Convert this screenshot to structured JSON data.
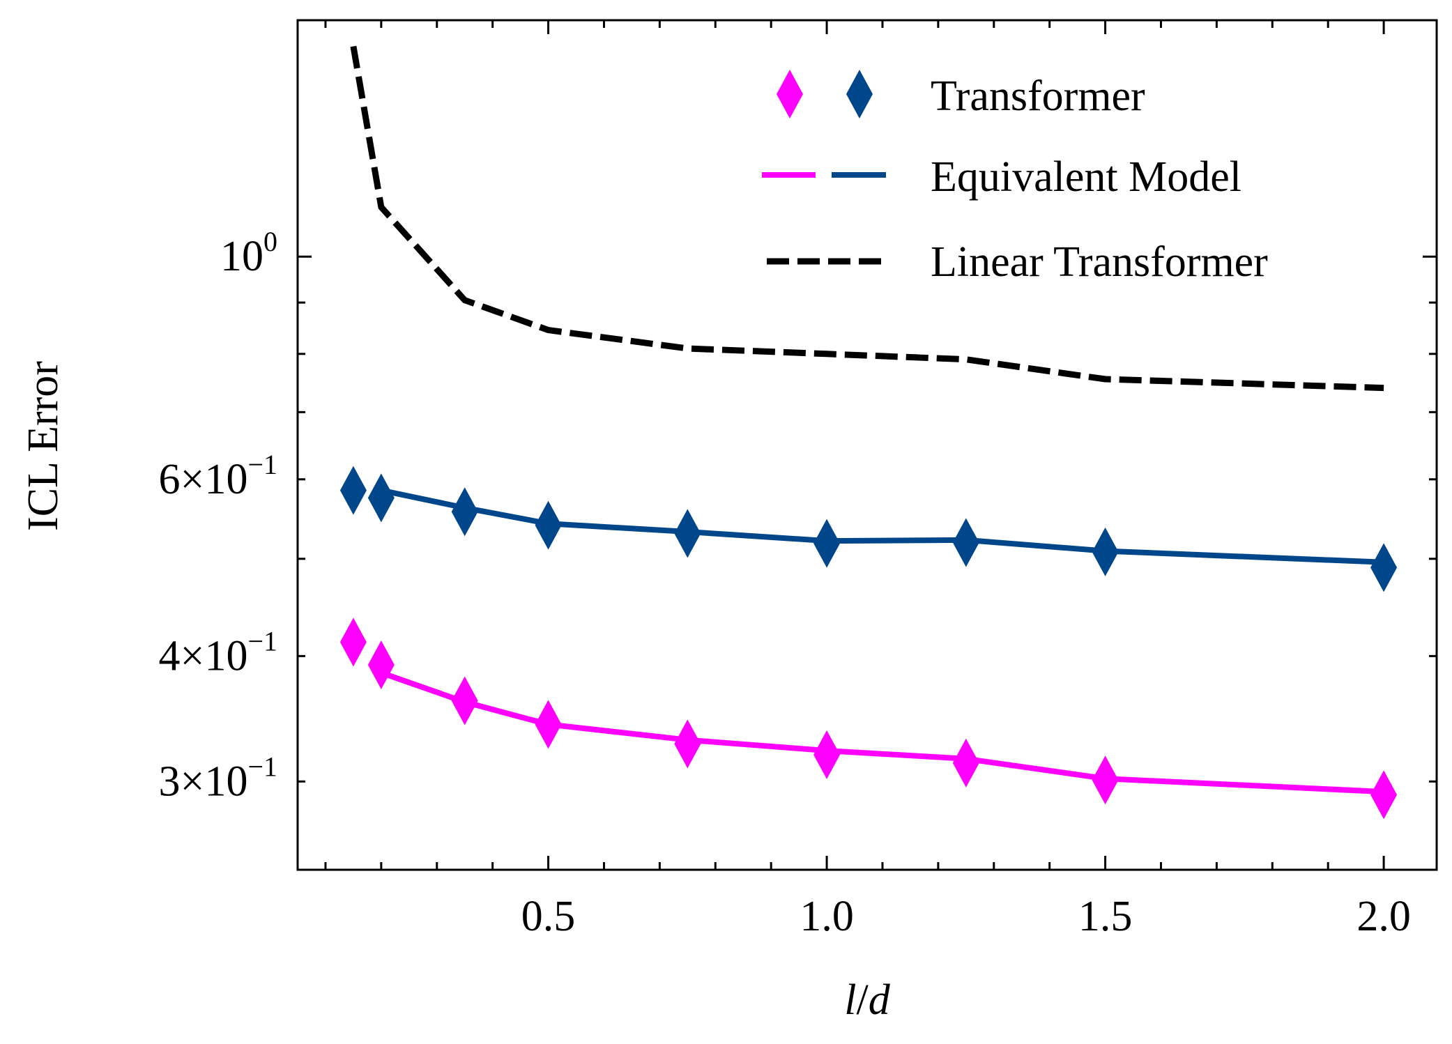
{
  "chart_data": {
    "type": "line",
    "xlabel_var1": "l",
    "xlabel_sep": "/",
    "xlabel_var2": "d",
    "ylabel": "ICL Error",
    "xscale": "linear",
    "yscale": "log",
    "xlim": [
      0.05,
      2.095
    ],
    "ylim": [
      0.245,
      1.72
    ],
    "x_ticks": [
      {
        "value": 0.5,
        "label": "0.5"
      },
      {
        "value": 1.0,
        "label": "1.0"
      },
      {
        "value": 1.5,
        "label": "1.5"
      },
      {
        "value": 2.0,
        "label": "2.0"
      }
    ],
    "y_ticks": [
      {
        "value": 1.0,
        "base": "10",
        "exp": "0"
      },
      {
        "value": 0.6,
        "mult": "6",
        "times": "×",
        "base": "10",
        "exp": "−1"
      },
      {
        "value": 0.4,
        "mult": "4",
        "times": "×",
        "base": "10",
        "exp": "−1"
      },
      {
        "value": 0.3,
        "mult": "3",
        "times": "×",
        "base": "10",
        "exp": "−1"
      }
    ],
    "series": [
      {
        "name": "Linear Transformer",
        "style": "dashed-line",
        "color": "#000000",
        "x": [
          0.15,
          0.2,
          0.35,
          0.5,
          0.75,
          1.0,
          1.25,
          1.5,
          2.0
        ],
        "y": [
          1.62,
          1.12,
          0.905,
          0.845,
          0.81,
          0.8,
          0.79,
          0.755,
          0.74
        ]
      },
      {
        "name": "Equivalent Model (blue)",
        "style": "solid-line",
        "color": "#00468b",
        "x": [
          0.2,
          0.35,
          0.5,
          0.75,
          1.0,
          1.25,
          1.5,
          2.0
        ],
        "y": [
          0.585,
          0.562,
          0.542,
          0.532,
          0.521,
          0.522,
          0.509,
          0.496
        ]
      },
      {
        "name": "Equivalent Model (magenta)",
        "style": "solid-line",
        "color": "#ff00ff",
        "x": [
          0.2,
          0.35,
          0.5,
          0.75,
          1.0,
          1.25,
          1.5,
          2.0
        ],
        "y": [
          0.385,
          0.36,
          0.342,
          0.33,
          0.322,
          0.316,
          0.302,
          0.293
        ]
      },
      {
        "name": "Transformer (blue)",
        "style": "markers",
        "marker": "diamond",
        "color": "#00468b",
        "x": [
          0.15,
          0.2,
          0.35,
          0.5,
          0.75,
          1.0,
          1.25,
          1.5,
          2.0
        ],
        "y": [
          0.585,
          0.575,
          0.557,
          0.54,
          0.53,
          0.518,
          0.519,
          0.508,
          0.49
        ]
      },
      {
        "name": "Transformer (magenta)",
        "style": "markers",
        "marker": "diamond",
        "color": "#ff00ff",
        "x": [
          0.15,
          0.2,
          0.35,
          0.5,
          0.75,
          1.0,
          1.25,
          1.5,
          2.0
        ],
        "y": [
          0.413,
          0.392,
          0.361,
          0.342,
          0.327,
          0.319,
          0.313,
          0.301,
          0.291
        ]
      }
    ],
    "legend": {
      "position": "top-right",
      "entries": [
        {
          "label": "Transformer",
          "kind": "markers",
          "colors": [
            "#ff00ff",
            "#00468b"
          ]
        },
        {
          "label": "Equivalent Model",
          "kind": "lines",
          "colors": [
            "#ff00ff",
            "#00468b"
          ]
        },
        {
          "label": "Linear Transformer",
          "kind": "dashed",
          "colors": [
            "#000000"
          ]
        }
      ]
    }
  }
}
